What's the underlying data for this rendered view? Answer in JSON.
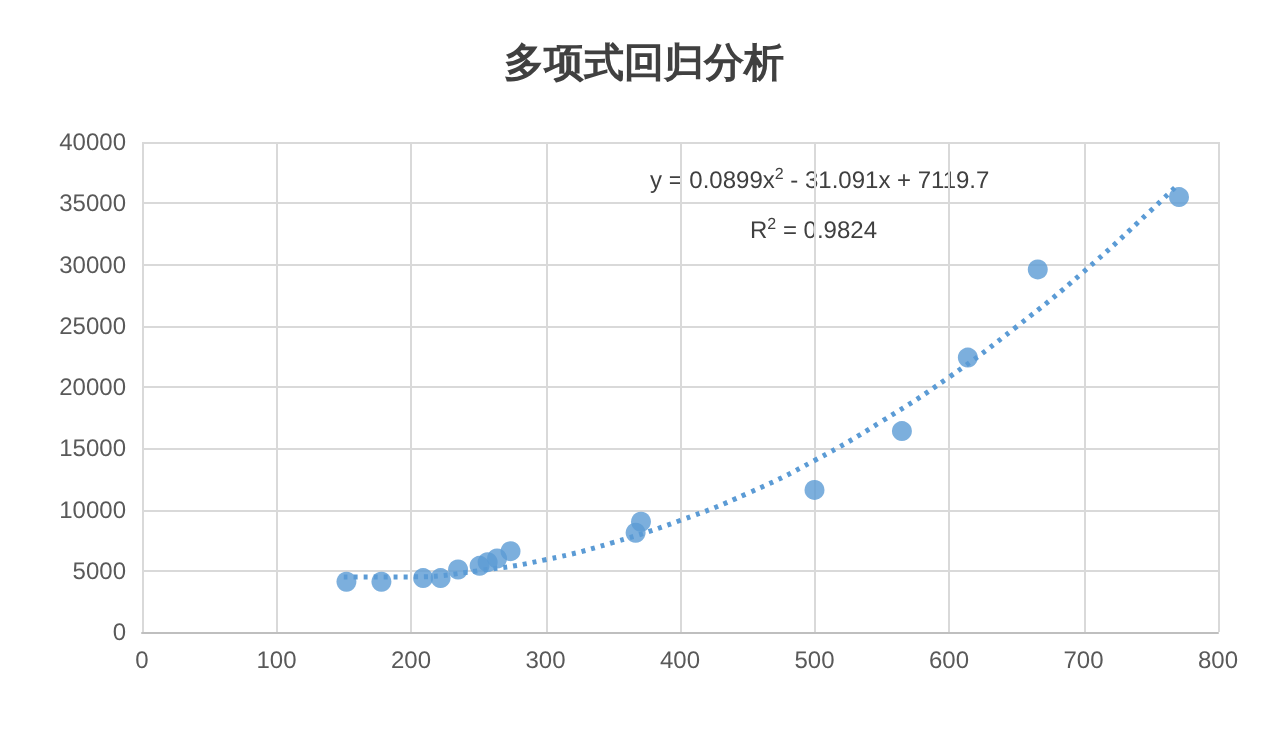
{
  "chart_data": {
    "type": "scatter",
    "title": "多项式回归分析",
    "xlim": [
      0,
      800
    ],
    "xticks": [
      0,
      100,
      200,
      300,
      400,
      500,
      600,
      700,
      800
    ],
    "ylim": [
      0,
      40000
    ],
    "yticks": [
      0,
      5000,
      10000,
      15000,
      20000,
      25000,
      30000,
      35000,
      40000
    ],
    "grid": true,
    "marker": "circle",
    "annotations": [
      "y = 0.0899x$^{2}$ - 31.091x + 7119.7",
      "R$^{2}$ = 0.9824"
    ],
    "series": [
      {
        "color": "#5b9bd5",
        "x": [
          152,
          178,
          209,
          222,
          235,
          251,
          257,
          264,
          274,
          367,
          371,
          500,
          565,
          614,
          666,
          771
        ],
        "values": [
          4100,
          4100,
          4400,
          4400,
          5100,
          5400,
          5700,
          6000,
          6600,
          8100,
          9000,
          11600,
          16400,
          22400,
          29600,
          35500
        ]
      },
      {
        "type": "line",
        "color": "#5b9bd5",
        "marker": "none",
        "line_style": "dotted",
        "x": [
          150,
          200,
          250,
          300,
          350,
          400,
          450,
          500,
          550,
          600,
          650,
          700,
          750,
          770
        ],
        "values": [
          4500,
          4500,
          5000,
          5900,
          7300,
          9100,
          11300,
          14000,
          17200,
          20800,
          24900,
          29400,
          34400,
          36500
        ]
      }
    ]
  }
}
